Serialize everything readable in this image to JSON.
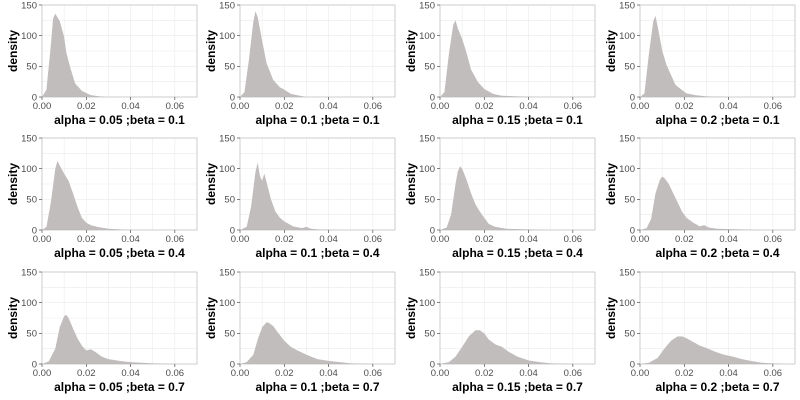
{
  "chart_data": {
    "type": "area",
    "layout": "3x4 grid of panels",
    "ylabel": "density",
    "xlim": [
      0,
      0.07
    ],
    "ylim": [
      0,
      150
    ],
    "x_ticks": [
      0.0,
      0.02,
      0.04,
      0.06
    ],
    "x_tick_labels": [
      "0.00",
      "0.02",
      "0.04",
      "0.06"
    ],
    "y_ticks": [
      0,
      50,
      100,
      150
    ],
    "y_tick_labels": [
      "0",
      "50",
      "100",
      "150"
    ],
    "grid": true,
    "fill_color": "#c2bdbd",
    "panels": [
      {
        "xlabel": "alpha =  0.05 ;beta =  0.1",
        "x": [
          0,
          0.002,
          0.004,
          0.005,
          0.006,
          0.008,
          0.01,
          0.011,
          0.013,
          0.015,
          0.018,
          0.022,
          0.026,
          0.03,
          0.04,
          0.05,
          0.06,
          0.07
        ],
        "y": [
          0,
          12,
          85,
          128,
          136,
          124,
          98,
          72,
          45,
          22,
          10,
          3,
          1,
          0,
          0,
          0,
          0,
          0
        ]
      },
      {
        "xlabel": "alpha =  0.1 ;beta =  0.1",
        "x": [
          0,
          0.002,
          0.004,
          0.006,
          0.007,
          0.008,
          0.01,
          0.012,
          0.015,
          0.018,
          0.02,
          0.023,
          0.027,
          0.03,
          0.04,
          0.05,
          0.06,
          0.07
        ],
        "y": [
          0,
          8,
          60,
          122,
          140,
          130,
          92,
          55,
          28,
          16,
          12,
          5,
          2,
          0,
          0,
          0,
          0,
          0
        ]
      },
      {
        "xlabel": "alpha =  0.15 ;beta =  0.1",
        "x": [
          0,
          0.002,
          0.004,
          0.006,
          0.007,
          0.008,
          0.01,
          0.012,
          0.014,
          0.017,
          0.02,
          0.024,
          0.028,
          0.035,
          0.045,
          0.055,
          0.07
        ],
        "y": [
          0,
          8,
          70,
          118,
          125,
          112,
          95,
          72,
          45,
          25,
          13,
          5,
          2,
          1,
          0,
          0,
          0
        ]
      },
      {
        "xlabel": "alpha =  0.2 ;beta =  0.1",
        "x": [
          0,
          0.002,
          0.004,
          0.006,
          0.007,
          0.008,
          0.01,
          0.012,
          0.014,
          0.016,
          0.018,
          0.021,
          0.025,
          0.03,
          0.04,
          0.05,
          0.06,
          0.07
        ],
        "y": [
          0,
          6,
          70,
          124,
          132,
          115,
          76,
          52,
          36,
          20,
          14,
          6,
          3,
          1,
          0,
          0,
          0,
          0
        ]
      },
      {
        "xlabel": "alpha =  0.05 ;beta =  0.4",
        "x": [
          0,
          0.002,
          0.004,
          0.006,
          0.007,
          0.008,
          0.01,
          0.012,
          0.014,
          0.016,
          0.018,
          0.02,
          0.022,
          0.025,
          0.03,
          0.04,
          0.05,
          0.06,
          0.07
        ],
        "y": [
          0,
          5,
          45,
          100,
          113,
          105,
          92,
          80,
          60,
          38,
          20,
          12,
          8,
          5,
          2,
          0,
          0,
          0,
          0
        ]
      },
      {
        "xlabel": "alpha =  0.1 ;beta =  0.4",
        "x": [
          0,
          0.003,
          0.005,
          0.007,
          0.008,
          0.009,
          0.01,
          0.011,
          0.012,
          0.014,
          0.016,
          0.018,
          0.02,
          0.024,
          0.028,
          0.03,
          0.032,
          0.035,
          0.045,
          0.055,
          0.07
        ],
        "y": [
          0,
          5,
          38,
          95,
          110,
          88,
          80,
          92,
          78,
          50,
          30,
          20,
          14,
          6,
          3,
          5,
          2,
          1,
          0,
          0,
          0
        ]
      },
      {
        "xlabel": "alpha =  0.15 ;beta =  0.4",
        "x": [
          0,
          0.003,
          0.005,
          0.007,
          0.008,
          0.009,
          0.01,
          0.012,
          0.014,
          0.016,
          0.018,
          0.02,
          0.022,
          0.025,
          0.03,
          0.04,
          0.05,
          0.07
        ],
        "y": [
          0,
          4,
          25,
          75,
          95,
          104,
          100,
          82,
          60,
          42,
          30,
          20,
          10,
          5,
          2,
          1,
          0,
          0
        ]
      },
      {
        "xlabel": "alpha =  0.2 ;beta =  0.4",
        "x": [
          0,
          0.003,
          0.005,
          0.007,
          0.009,
          0.01,
          0.011,
          0.013,
          0.015,
          0.017,
          0.019,
          0.021,
          0.024,
          0.027,
          0.029,
          0.031,
          0.035,
          0.045,
          0.055,
          0.07
        ],
        "y": [
          0,
          3,
          18,
          60,
          82,
          87,
          85,
          75,
          60,
          45,
          30,
          20,
          12,
          6,
          8,
          4,
          2,
          1,
          0,
          0
        ]
      },
      {
        "xlabel": "alpha =  0.05 ;beta =  0.7",
        "x": [
          0,
          0.003,
          0.006,
          0.008,
          0.01,
          0.011,
          0.012,
          0.014,
          0.016,
          0.018,
          0.02,
          0.022,
          0.024,
          0.027,
          0.03,
          0.035,
          0.04,
          0.05,
          0.06,
          0.07
        ],
        "y": [
          0,
          4,
          25,
          60,
          78,
          80,
          75,
          58,
          42,
          30,
          22,
          24,
          20,
          12,
          8,
          5,
          3,
          1,
          0,
          0
        ]
      },
      {
        "xlabel": "alpha =  0.1 ;beta =  0.7",
        "x": [
          0,
          0.003,
          0.006,
          0.008,
          0.01,
          0.012,
          0.013,
          0.015,
          0.017,
          0.02,
          0.023,
          0.026,
          0.03,
          0.035,
          0.04,
          0.045,
          0.05,
          0.06,
          0.07
        ],
        "y": [
          0,
          3,
          15,
          40,
          60,
          68,
          67,
          62,
          52,
          38,
          28,
          22,
          15,
          8,
          5,
          3,
          1,
          0,
          0
        ]
      },
      {
        "xlabel": "alpha =  0.15 ;beta =  0.7",
        "x": [
          0,
          0.004,
          0.007,
          0.01,
          0.013,
          0.016,
          0.018,
          0.02,
          0.022,
          0.025,
          0.028,
          0.031,
          0.035,
          0.04,
          0.045,
          0.05,
          0.06,
          0.07
        ],
        "y": [
          0,
          3,
          12,
          28,
          45,
          55,
          55,
          50,
          40,
          32,
          28,
          20,
          12,
          6,
          3,
          1,
          0,
          0
        ]
      },
      {
        "xlabel": "alpha =  0.2 ;beta =  0.7",
        "x": [
          0,
          0.004,
          0.008,
          0.011,
          0.014,
          0.017,
          0.019,
          0.021,
          0.024,
          0.027,
          0.03,
          0.034,
          0.038,
          0.042,
          0.046,
          0.05,
          0.055,
          0.06,
          0.065,
          0.07
        ],
        "y": [
          0,
          2,
          10,
          25,
          38,
          45,
          45,
          42,
          36,
          30,
          26,
          20,
          15,
          12,
          8,
          5,
          2,
          1,
          0,
          0
        ]
      }
    ]
  }
}
